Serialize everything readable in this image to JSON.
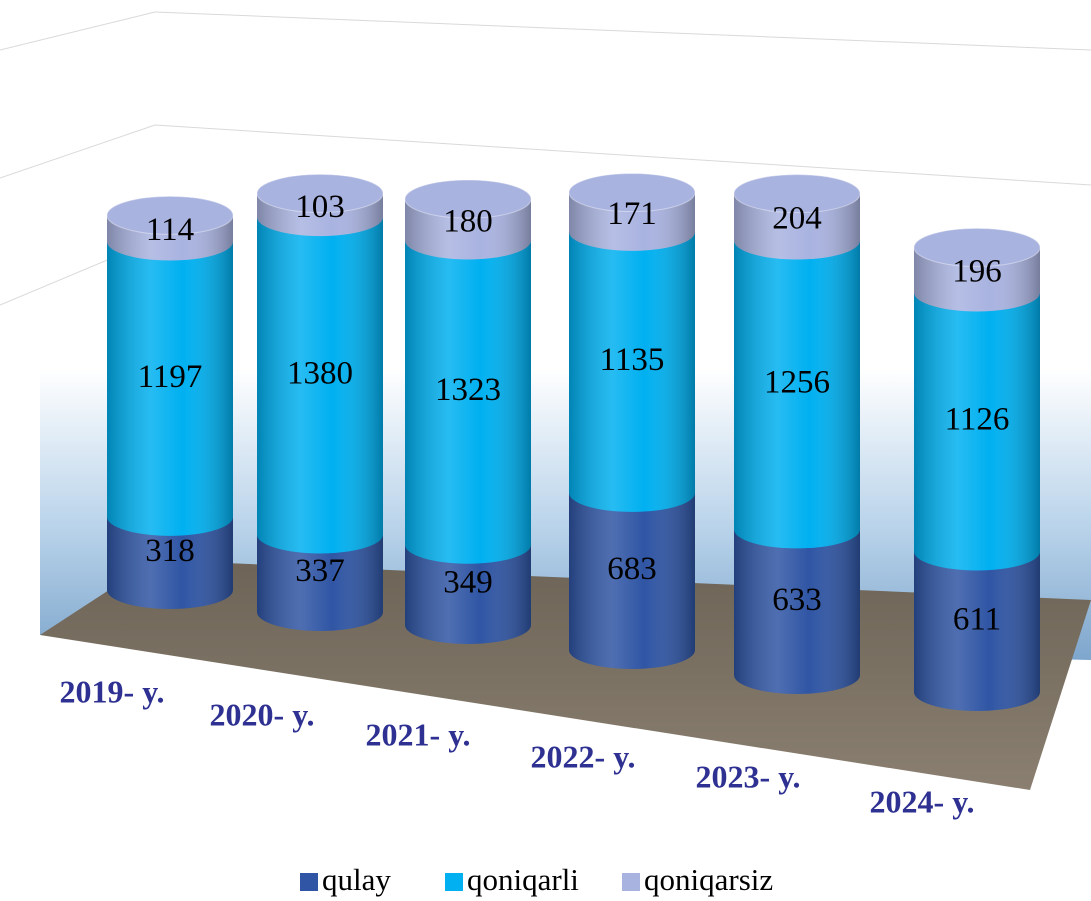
{
  "chart_data": {
    "type": "stacked-cylinder",
    "categories": [
      "2019- y.",
      "2020- y.",
      "2021- y.",
      "2022- y.",
      "2023- y.",
      "2024- y."
    ],
    "series": [
      {
        "name": "qulay",
        "color": "#2f55a4",
        "values": [
          318,
          337,
          349,
          683,
          633,
          611
        ]
      },
      {
        "name": "qoniqarli",
        "color": "#00b0f0",
        "values": [
          1197,
          1380,
          1323,
          1135,
          1256,
          1126
        ]
      },
      {
        "name": "qoniqarsiz",
        "color": "#a9b3e0",
        "values": [
          114,
          103,
          180,
          171,
          204,
          196
        ]
      }
    ],
    "ylim": [
      0,
      2500
    ],
    "legend": "bottom"
  }
}
